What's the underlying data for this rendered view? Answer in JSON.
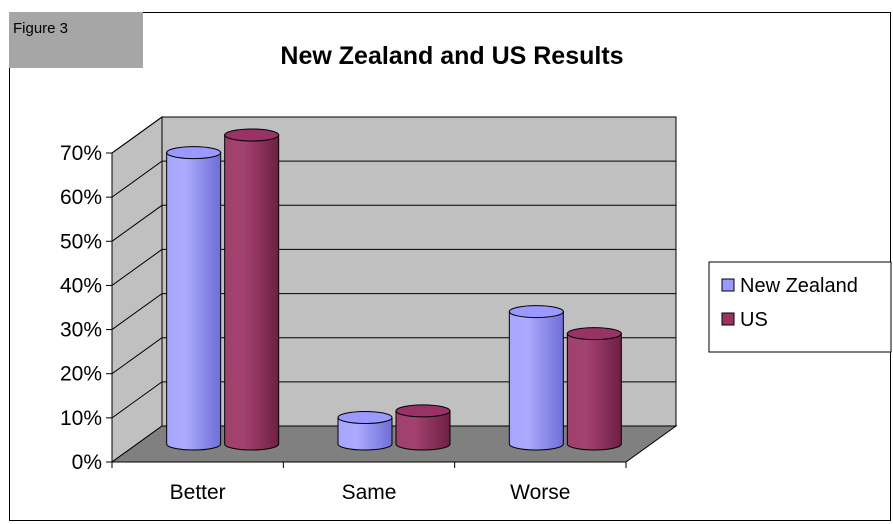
{
  "figure_label": "Figure 3",
  "chart_data": {
    "type": "bar",
    "title": "New Zealand and US Results",
    "categories": [
      "Better",
      "Same",
      "Worse"
    ],
    "series": [
      {
        "name": "New Zealand",
        "values": [
          66,
          6,
          30
        ],
        "color": "#9999ff"
      },
      {
        "name": "US",
        "values": [
          70,
          7.5,
          25
        ],
        "color": "#993366"
      }
    ],
    "ylim": [
      0,
      70
    ],
    "yticks": [
      "0%",
      "10%",
      "20%",
      "30%",
      "40%",
      "50%",
      "60%",
      "70%"
    ],
    "grid": true,
    "legend": "right",
    "colors": {
      "wall": "#c0c0c0",
      "floor": "#808080"
    }
  }
}
